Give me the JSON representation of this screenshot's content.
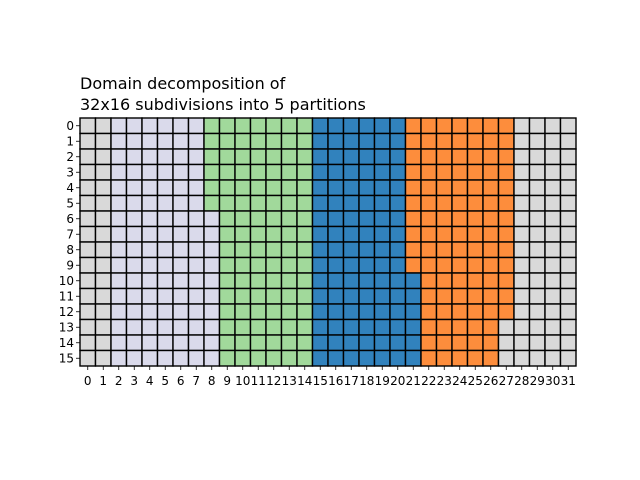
{
  "chart_data": {
    "type": "heatmap",
    "title_line1": "Domain decomposition of",
    "title_line2": "32x16 subdivisions into 5 partitions",
    "xlabel": "",
    "ylabel": "",
    "n_cols": 32,
    "n_rows": 16,
    "x_ticks": [
      "0",
      "1",
      "2",
      "3",
      "4",
      "5",
      "6",
      "7",
      "8",
      "9",
      "10",
      "11",
      "12",
      "13",
      "14",
      "15",
      "16",
      "17",
      "18",
      "19",
      "20",
      "21",
      "22",
      "23",
      "24",
      "25",
      "26",
      "27",
      "28",
      "29",
      "30",
      "31"
    ],
    "y_ticks": [
      "0",
      "1",
      "2",
      "3",
      "4",
      "5",
      "6",
      "7",
      "8",
      "9",
      "10",
      "11",
      "12",
      "13",
      "14",
      "15"
    ],
    "partition_colors": [
      "#d9d9d9",
      "#dadaeb",
      "#a1d99b",
      "#3182bd",
      "#fd8d3c"
    ],
    "row_runs": [
      [
        [
          0,
          2,
          0
        ],
        [
          2,
          6,
          1
        ],
        [
          8,
          7,
          2
        ],
        [
          15,
          6,
          3
        ],
        [
          21,
          7,
          4
        ],
        [
          28,
          4,
          0
        ]
      ],
      [
        [
          0,
          2,
          0
        ],
        [
          2,
          6,
          1
        ],
        [
          8,
          7,
          2
        ],
        [
          15,
          6,
          3
        ],
        [
          21,
          7,
          4
        ],
        [
          28,
          4,
          0
        ]
      ],
      [
        [
          0,
          2,
          0
        ],
        [
          2,
          6,
          1
        ],
        [
          8,
          7,
          2
        ],
        [
          15,
          6,
          3
        ],
        [
          21,
          7,
          4
        ],
        [
          28,
          4,
          0
        ]
      ],
      [
        [
          0,
          2,
          0
        ],
        [
          2,
          6,
          1
        ],
        [
          8,
          7,
          2
        ],
        [
          15,
          6,
          3
        ],
        [
          21,
          7,
          4
        ],
        [
          28,
          4,
          0
        ]
      ],
      [
        [
          0,
          2,
          0
        ],
        [
          2,
          6,
          1
        ],
        [
          8,
          7,
          2
        ],
        [
          15,
          6,
          3
        ],
        [
          21,
          7,
          4
        ],
        [
          28,
          4,
          0
        ]
      ],
      [
        [
          0,
          2,
          0
        ],
        [
          2,
          6,
          1
        ],
        [
          8,
          7,
          2
        ],
        [
          15,
          6,
          3
        ],
        [
          21,
          7,
          4
        ],
        [
          28,
          4,
          0
        ]
      ],
      [
        [
          0,
          2,
          0
        ],
        [
          2,
          7,
          1
        ],
        [
          9,
          6,
          2
        ],
        [
          15,
          6,
          3
        ],
        [
          21,
          7,
          4
        ],
        [
          28,
          4,
          0
        ]
      ],
      [
        [
          0,
          2,
          0
        ],
        [
          2,
          7,
          1
        ],
        [
          9,
          6,
          2
        ],
        [
          15,
          6,
          3
        ],
        [
          21,
          7,
          4
        ],
        [
          28,
          4,
          0
        ]
      ],
      [
        [
          0,
          2,
          0
        ],
        [
          2,
          7,
          1
        ],
        [
          9,
          6,
          2
        ],
        [
          15,
          6,
          3
        ],
        [
          21,
          7,
          4
        ],
        [
          28,
          4,
          0
        ]
      ],
      [
        [
          0,
          2,
          0
        ],
        [
          2,
          7,
          1
        ],
        [
          9,
          6,
          2
        ],
        [
          15,
          6,
          3
        ],
        [
          21,
          7,
          4
        ],
        [
          28,
          4,
          0
        ]
      ],
      [
        [
          0,
          2,
          0
        ],
        [
          2,
          7,
          1
        ],
        [
          9,
          6,
          2
        ],
        [
          15,
          7,
          3
        ],
        [
          22,
          6,
          4
        ],
        [
          28,
          4,
          0
        ]
      ],
      [
        [
          0,
          2,
          0
        ],
        [
          2,
          7,
          1
        ],
        [
          9,
          6,
          2
        ],
        [
          15,
          7,
          3
        ],
        [
          22,
          6,
          4
        ],
        [
          28,
          4,
          0
        ]
      ],
      [
        [
          0,
          2,
          0
        ],
        [
          2,
          7,
          1
        ],
        [
          9,
          6,
          2
        ],
        [
          15,
          7,
          3
        ],
        [
          22,
          6,
          4
        ],
        [
          28,
          4,
          0
        ]
      ],
      [
        [
          0,
          2,
          0
        ],
        [
          2,
          7,
          1
        ],
        [
          9,
          6,
          2
        ],
        [
          15,
          7,
          3
        ],
        [
          22,
          5,
          4
        ],
        [
          27,
          5,
          0
        ]
      ],
      [
        [
          0,
          2,
          0
        ],
        [
          2,
          7,
          1
        ],
        [
          9,
          6,
          2
        ],
        [
          15,
          7,
          3
        ],
        [
          22,
          5,
          4
        ],
        [
          27,
          5,
          0
        ]
      ],
      [
        [
          0,
          2,
          0
        ],
        [
          2,
          7,
          1
        ],
        [
          9,
          6,
          2
        ],
        [
          15,
          7,
          3
        ],
        [
          22,
          5,
          4
        ],
        [
          27,
          5,
          0
        ]
      ]
    ]
  }
}
